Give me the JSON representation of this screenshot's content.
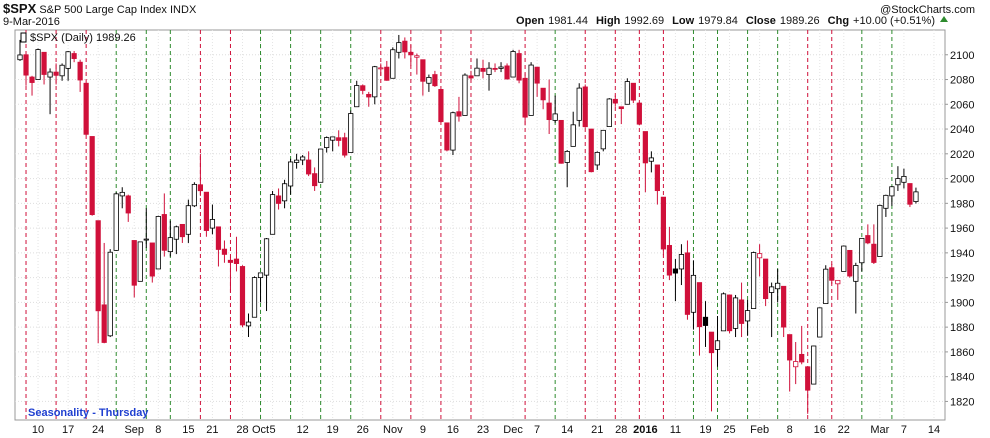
{
  "header": {
    "symbol": "$SPX",
    "name": "S&P 500 Large Cap Index",
    "exchange": "INDX",
    "date": "9-Mar-2016",
    "quote": [
      {
        "label": "Open",
        "value": "1981.44"
      },
      {
        "label": "High",
        "value": "1992.69"
      },
      {
        "label": "Low",
        "value": "1979.84"
      },
      {
        "label": "Close",
        "value": "1989.26"
      },
      {
        "label": "Chg",
        "value": "+10.00 (+0.51%)"
      }
    ],
    "watermark": "@StockCharts.com"
  },
  "chart_data": {
    "type": "candlestick",
    "legend": "$SPX (Daily) 1989.26",
    "annotation": "Seasonality - Thursday",
    "ylim": [
      1805,
      2120
    ],
    "yticks": [
      1820,
      1840,
      1860,
      1880,
      1900,
      1920,
      1940,
      1960,
      1980,
      2000,
      2020,
      2040,
      2060,
      2080,
      2100
    ],
    "grid": true,
    "up_color": "#000000",
    "down_color": "#d0103a",
    "vline_up_color": "#2e8b2e",
    "vline_down_color": "#d0103a",
    "categories": [
      null,
      null,
      null,
      "10",
      null,
      null,
      null,
      null,
      "17",
      null,
      null,
      null,
      null,
      "24",
      null,
      null,
      null,
      null,
      null,
      "Sep",
      null,
      null,
      null,
      "8",
      null,
      null,
      null,
      null,
      "15",
      null,
      null,
      null,
      "21",
      null,
      null,
      null,
      null,
      "28",
      null,
      null,
      "Oct",
      null,
      "5",
      null,
      null,
      null,
      null,
      "12",
      null,
      null,
      null,
      null,
      "19",
      null,
      null,
      null,
      null,
      "26",
      null,
      null,
      null,
      null,
      "Nov",
      null,
      null,
      null,
      null,
      "9",
      null,
      null,
      null,
      null,
      "16",
      null,
      null,
      null,
      null,
      "23",
      null,
      null,
      null,
      null,
      "Dec",
      null,
      null,
      null,
      "7",
      null,
      null,
      null,
      null,
      "14",
      null,
      null,
      null,
      null,
      "21",
      null,
      null,
      null,
      "28",
      null,
      null,
      null,
      "2016",
      null,
      null,
      null,
      null,
      "11",
      null,
      null,
      null,
      null,
      "19",
      null,
      null,
      null,
      "25",
      null,
      null,
      null,
      null,
      "Feb",
      null,
      null,
      null,
      null,
      "8",
      null,
      null,
      null,
      null,
      "16",
      null,
      null,
      null,
      "22",
      null,
      null,
      null,
      null,
      null,
      "Mar",
      null,
      null,
      null,
      "7",
      null,
      null,
      null,
      null,
      "14",
      null
    ],
    "vlines": [
      1,
      6,
      11,
      16,
      21,
      25,
      30,
      35,
      40,
      45,
      50,
      55,
      60,
      65,
      70,
      75,
      84,
      89,
      94,
      99,
      103,
      107,
      112,
      116,
      121,
      126,
      131,
      135,
      140,
      145
    ],
    "open": [
      2096,
      2100,
      2082,
      2080,
      2102,
      2082,
      2086,
      2083,
      2089,
      2101,
      2094,
      2077,
      2034,
      1966,
      1898,
      1873,
      1942,
      1986,
      1986,
      1950,
      1917,
      1951,
      1948,
      1927,
      1971,
      1941,
      1951,
      1963,
      1955,
      1978,
      1995,
      1989,
      1960,
      1961,
      1943,
      1934,
      1935,
      1929,
      1881,
      1888,
      1920,
      1922,
      1955,
      1986,
      1982,
      1994,
      2013,
      2015,
      2015,
      2004,
      1997,
      2025,
      2031,
      2033,
      2033,
      2021,
      2058,
      2075,
      2068,
      2066,
      2089,
      2090,
      2081,
      2102,
      2111,
      2102,
      2098,
      2096,
      2077,
      2084,
      2072,
      2045,
      2023,
      2054,
      2051,
      2083,
      2083,
      2089,
      2084,
      2089,
      2089,
      2091,
      2082,
      2101,
      2081,
      2051,
      2090,
      2073,
      2061,
      2047,
      2047,
      2013,
      2026,
      2047,
      2074,
      2040,
      2011,
      2024,
      2042,
      2064,
      2058,
      2060,
      2077,
      2061,
      2038,
      2014,
      2011,
      1985,
      1946,
      1927,
      1927,
      1940,
      1892,
      1916,
      1888,
      1876,
      1862,
      1877,
      1906,
      1879,
      1902,
      1885,
      1895,
      1936,
      1935,
      1908,
      1911,
      1913,
      1874,
      1848,
      1858,
      1848,
      1834,
      1872,
      1899,
      1928,
      1915,
      1925,
      1942,
      1917,
      1932,
      1954,
      1947,
      1937,
      1976,
      1986,
      1995,
      1997,
      1996,
      1981.44,
      null,
      null,
      null,
      null
    ],
    "high": [
      2112,
      2103,
      2083,
      2105,
      2102,
      2089,
      2093,
      2093,
      2103,
      2103,
      2096,
      2077,
      2034,
      1966,
      1948,
      1943,
      1989,
      1993,
      1987,
      1950,
      1949,
      1976,
      1948,
      1970,
      1988,
      1966,
      1962,
      1963,
      1983,
      1997,
      2020,
      1989,
      1979,
      1961,
      1950,
      1937,
      1953,
      1930,
      1891,
      1921,
      1924,
      1952,
      1990,
      1992,
      1999,
      2016,
      2020,
      2019,
      2022,
      2009,
      2024,
      2034,
      2034,
      2039,
      2037,
      2055,
      2079,
      2076,
      2070,
      2091,
      2093,
      2095,
      2106,
      2116,
      2114,
      2108,
      2101,
      2096,
      2084,
      2087,
      2072,
      2045,
      2054,
      2066,
      2085,
      2087,
      2097,
      2096,
      2094,
      2093,
      2094,
      2093,
      2104,
      2104,
      2085,
      2094,
      2090,
      2073,
      2080,
      2067,
      2047,
      2023,
      2054,
      2077,
      2076,
      2040,
      2022,
      2039,
      2065,
      2067,
      2058,
      2081,
      2077,
      2062,
      2038,
      2022,
      2011,
      1985,
      1961,
      1935,
      1947,
      1950,
      1934,
      1916,
      1901,
      1876,
      1889,
      1908,
      1906,
      1906,
      1916,
      1902,
      1941,
      1947,
      1935,
      1916,
      1927,
      1913,
      1874,
      1868,
      1881,
      1848,
      1865,
      1896,
      1930,
      1931,
      1918,
      1946,
      1942,
      1932,
      1952,
      1963,
      1963,
      1979,
      1987,
      1994,
      2010,
      2008,
      1996,
      1992.69,
      null,
      null,
      null,
      null
    ],
    "low": [
      2095,
      2075,
      2067,
      2080,
      2076,
      2052,
      2076,
      2079,
      2079,
      2094,
      2070,
      2035,
      1970,
      1867,
      1867,
      1872,
      1942,
      1976,
      1965,
      1904,
      1917,
      1944,
      1916,
      1927,
      1937,
      1937,
      1939,
      1948,
      1948,
      1977,
      1986,
      1953,
      1955,
      1929,
      1932,
      1908,
      1925,
      1880,
      1872,
      1888,
      1900,
      1893,
      1955,
      1975,
      1976,
      1987,
      2008,
      2011,
      2002,
      1990,
      1997,
      2021,
      2022,
      2026,
      2017,
      2021,
      2058,
      2068,
      2058,
      2060,
      2083,
      2079,
      2081,
      2097,
      2097,
      2091,
      2084,
      2067,
      2070,
      2074,
      2045,
      2022,
      2019,
      2046,
      2051,
      2078,
      2083,
      2081,
      2071,
      2086,
      2086,
      2080,
      2082,
      2077,
      2043,
      2051,
      2066,
      2056,
      2036,
      2045,
      2012,
      1993,
      2026,
      2042,
      2041,
      2005,
      2007,
      2022,
      2042,
      2058,
      2044,
      2060,
      2061,
      2043,
      1989,
      2005,
      1979,
      1938,
      1918,
      1901,
      1914,
      1886,
      1878,
      1857,
      1864,
      1812,
      1848,
      1877,
      1875,
      1872,
      1872,
      1873,
      1895,
      1921,
      1897,
      1872,
      1900,
      1872,
      1828,
      1834,
      1850,
      1810,
      1834,
      1872,
      1899,
      1915,
      1902,
      1925,
      1920,
      1891,
      1925,
      1947,
      1931,
      1937,
      1969,
      1978,
      1990,
      1992,
      1977,
      1979.84,
      null,
      null,
      null,
      null
    ],
    "close": [
      2099.84,
      2083.56,
      2077.57,
      2104.18,
      2084.07,
      2086.05,
      2083.39,
      2091.54,
      2102.44,
      2096.92,
      2079.61,
      2035.73,
      1970.89,
      1893.21,
      1867.61,
      1940.51,
      1987.66,
      1988.87,
      1972.18,
      1913.85,
      1948.86,
      1951.13,
      1921.22,
      1969.41,
      1942.04,
      1952.29,
      1961.05,
      1953.03,
      1978.09,
      1995.31,
      1990.2,
      1958.03,
      1966.97,
      1942.74,
      1938.76,
      1932.24,
      1931.34,
      1881.77,
      1884.09,
      1920.03,
      1923.82,
      1951.36,
      1987.05,
      1979.92,
      1995.83,
      2013.43,
      2014.89,
      2017.46,
      2003.69,
      1994.24,
      2023.86,
      2033.11,
      2033.66,
      2030.77,
      2018.94,
      2052.51,
      2075.15,
      2071.18,
      2065.89,
      2090.35,
      2089.41,
      2079.36,
      2104.05,
      2109.79,
      2102.31,
      2099.93,
      2099.2,
      2078.58,
      2081.72,
      2075,
      2045.97,
      2023.04,
      2053.19,
      2050.44,
      2083.58,
      2081.24,
      2089.17,
      2086.59,
      2089.14,
      2088.87,
      2090.11,
      2080.41,
      2102.63,
      2079.51,
      2049.62,
      2091.69,
      2077.07,
      2063.59,
      2047.62,
      2052.23,
      2012.37,
      2021.94,
      2043.41,
      2073.07,
      2041.89,
      2005.55,
      2021.15,
      2038.97,
      2064.29,
      2060.99,
      2056.5,
      2078.36,
      2063.36,
      2043.94,
      2012.66,
      2016.71,
      1990.26,
      1943.09,
      1922.03,
      1923.67,
      1938.68,
      1890.28,
      1921.84,
      1880.33,
      1881.33,
      1859.33,
      1868.99,
      1906.9,
      1877.08,
      1903.63,
      1882.95,
      1893.36,
      1940.24,
      1939.38,
      1903.03,
      1912.53,
      1915.45,
      1880.05,
      1853.44,
      1852.21,
      1851.86,
      1829.08,
      1864.78,
      1895.58,
      1926.82,
      1917.83,
      1917.78,
      1945.5,
      1921.27,
      1929.8,
      1951.7,
      1948.05,
      1932.23,
      1978.35,
      1986.45,
      1993.4,
      1999.99,
      2001.76,
      1979.26,
      1989.26,
      null,
      null,
      null,
      null
    ]
  }
}
